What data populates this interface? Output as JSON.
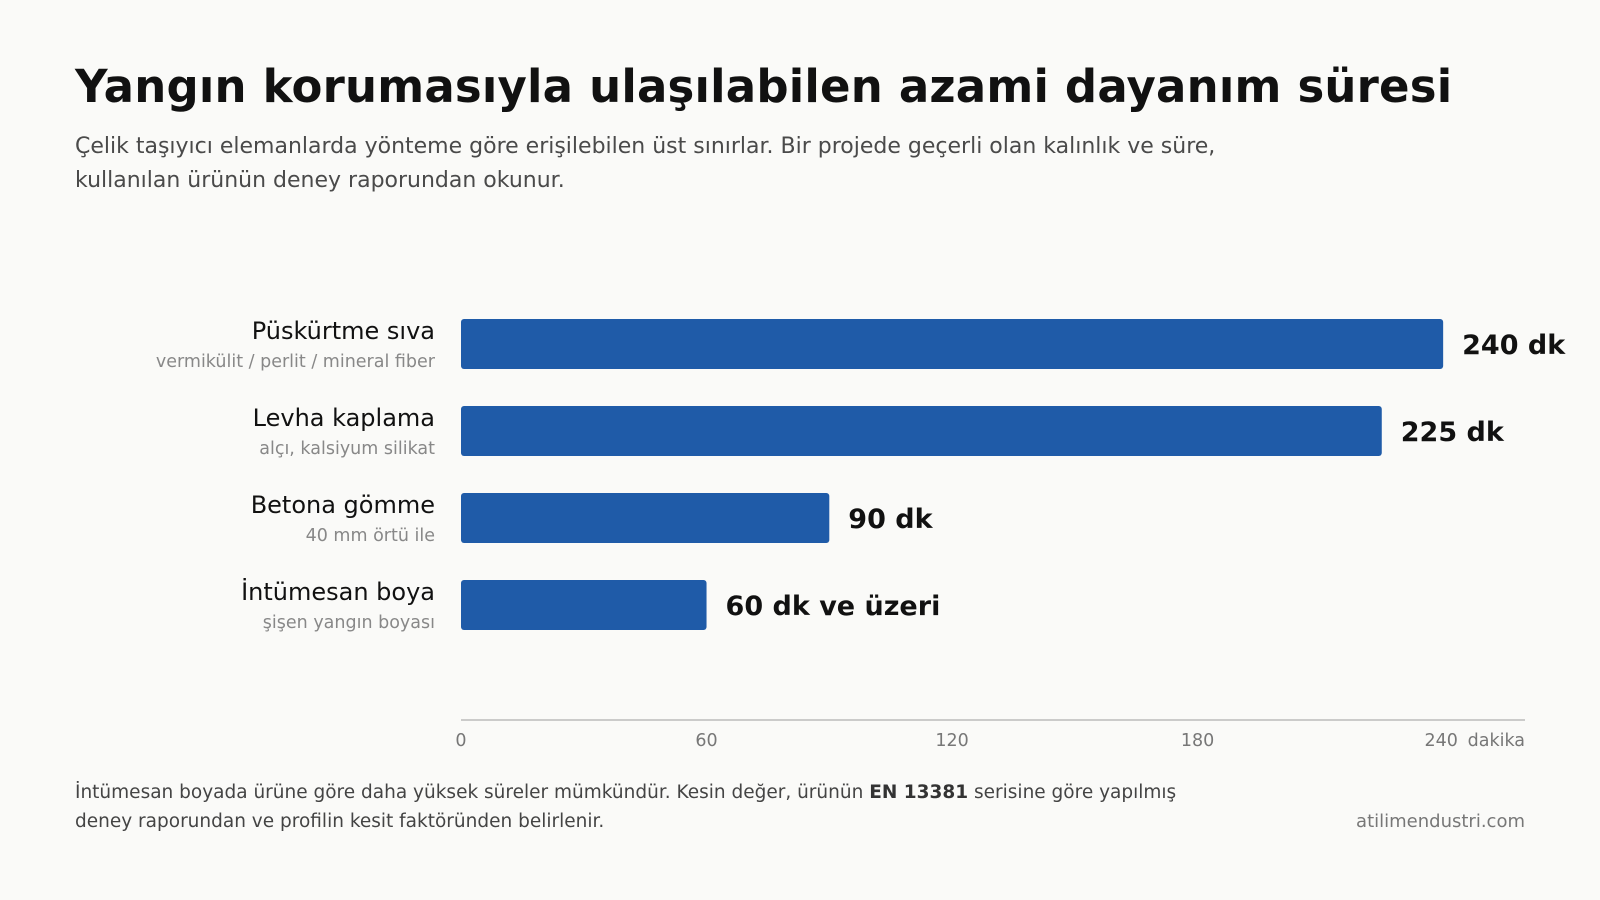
{
  "header": {
    "title": "Yangın korumasıyla ulaşılabilen azami dayanım süresi",
    "subtitle": "Çelik taşıyıcı elemanlarda yönteme göre erişilebilen üst sınırlar. Bir projede geçerli olan kalınlık ve süre, kullanılan ürünün deney raporundan okunur."
  },
  "chart_data": {
    "type": "bar",
    "orientation": "horizontal",
    "categories": [
      "Püskürtme sıva",
      "Levha kaplama",
      "Betona gömme",
      "İntümesan boya"
    ],
    "sublabels": [
      "vermikülit / perlit / mineral fiber",
      "alçı, kalsiyum silikat",
      "40 mm örtü ile",
      "şişen yangın boyası"
    ],
    "values": [
      240,
      225,
      90,
      60
    ],
    "value_labels": [
      "240 dk",
      "225 dk",
      "90 dk",
      "60 dk ve üzeri"
    ],
    "xlim": [
      0,
      260
    ],
    "ticks": [
      0,
      60,
      120,
      180,
      240
    ],
    "tick_labels": [
      "0",
      "60",
      "120",
      "180",
      "240"
    ],
    "xlabel": "dakika",
    "bar_color": "#1f5ba8",
    "grid": false,
    "legend": "none"
  },
  "footer": {
    "note_before": "İntümesan boyada ürüne göre daha yüksek süreler mümkündür. Kesin değer, ürünün ",
    "note_bold": "EN 13381",
    "note_after": " serisine göre yapılmış deney raporundan ve profilin kesit faktöründen belirlenir.",
    "source": "atilimendustri.com"
  }
}
